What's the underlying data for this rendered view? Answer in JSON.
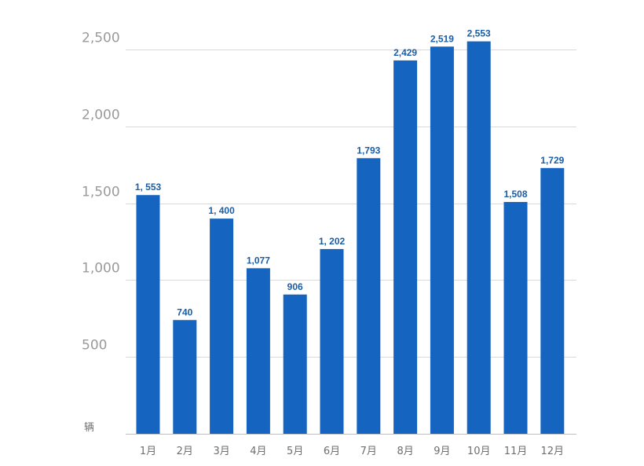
{
  "chart_data": {
    "type": "bar",
    "categories": [
      "1月",
      "2月",
      "3月",
      "4月",
      "5月",
      "6月",
      "7月",
      "8月",
      "9月",
      "10月",
      "11月",
      "12月"
    ],
    "values": [
      1553,
      740,
      1400,
      1077,
      906,
      1202,
      1793,
      2429,
      2519,
      2553,
      1508,
      1729
    ],
    "value_labels": [
      "1, 553",
      "740",
      "1, 400",
      "1,077",
      "906",
      "1, 202",
      "1,793",
      "2,429",
      "2,519",
      "2,553",
      "1,508",
      "1,729"
    ],
    "yticks": [
      500,
      1000,
      1500,
      2000,
      2500
    ],
    "ytick_labels": [
      "500",
      "1,000",
      "1,500",
      "2,000",
      "2,500"
    ],
    "ylim": [
      0,
      2500
    ],
    "unit_label": "辆",
    "grid": true,
    "legend": "none",
    "bar_color": "#1565c0",
    "label_color": "#1a5ea8"
  }
}
